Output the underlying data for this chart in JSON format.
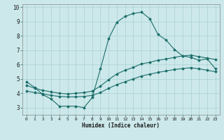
{
  "xlabel": "Humidex (Indice chaleur)",
  "background_color": "#cce8ea",
  "grid_color": "#aacfd2",
  "line_color": "#1a6e6a",
  "xlim": [
    -0.5,
    23.5
  ],
  "ylim": [
    2.5,
    10.2
  ],
  "xticks": [
    0,
    1,
    2,
    3,
    4,
    5,
    6,
    7,
    8,
    9,
    10,
    11,
    12,
    13,
    14,
    15,
    16,
    17,
    18,
    19,
    20,
    21,
    22,
    23
  ],
  "yticks": [
    3,
    4,
    5,
    6,
    7,
    8,
    9,
    10
  ],
  "series1_x": [
    0,
    1,
    2,
    3,
    4,
    5,
    6,
    7,
    8,
    9,
    10,
    11,
    12,
    13,
    14,
    15,
    16,
    17,
    18,
    19,
    20,
    21,
    22,
    23
  ],
  "series1_y": [
    4.8,
    4.4,
    3.9,
    3.6,
    3.1,
    3.1,
    3.1,
    3.0,
    3.7,
    5.7,
    7.8,
    8.95,
    9.35,
    9.55,
    9.65,
    9.2,
    8.1,
    7.7,
    7.05,
    6.6,
    6.5,
    6.3,
    6.4,
    5.7
  ],
  "series2_x": [
    0,
    1,
    2,
    3,
    4,
    5,
    6,
    7,
    8,
    9,
    10,
    11,
    12,
    13,
    14,
    15,
    16,
    17,
    18,
    19,
    20,
    21,
    22,
    23
  ],
  "series2_y": [
    4.55,
    4.35,
    4.2,
    4.1,
    4.0,
    3.95,
    4.0,
    4.05,
    4.15,
    4.5,
    4.95,
    5.35,
    5.6,
    5.8,
    6.05,
    6.15,
    6.3,
    6.38,
    6.5,
    6.6,
    6.65,
    6.55,
    6.45,
    6.35
  ],
  "series3_x": [
    0,
    1,
    2,
    3,
    4,
    5,
    6,
    7,
    8,
    9,
    10,
    11,
    12,
    13,
    14,
    15,
    16,
    17,
    18,
    19,
    20,
    21,
    22,
    23
  ],
  "series3_y": [
    4.15,
    4.05,
    3.95,
    3.85,
    3.78,
    3.75,
    3.75,
    3.78,
    3.85,
    4.05,
    4.35,
    4.6,
    4.8,
    5.0,
    5.2,
    5.33,
    5.45,
    5.55,
    5.65,
    5.72,
    5.78,
    5.7,
    5.6,
    5.5
  ]
}
